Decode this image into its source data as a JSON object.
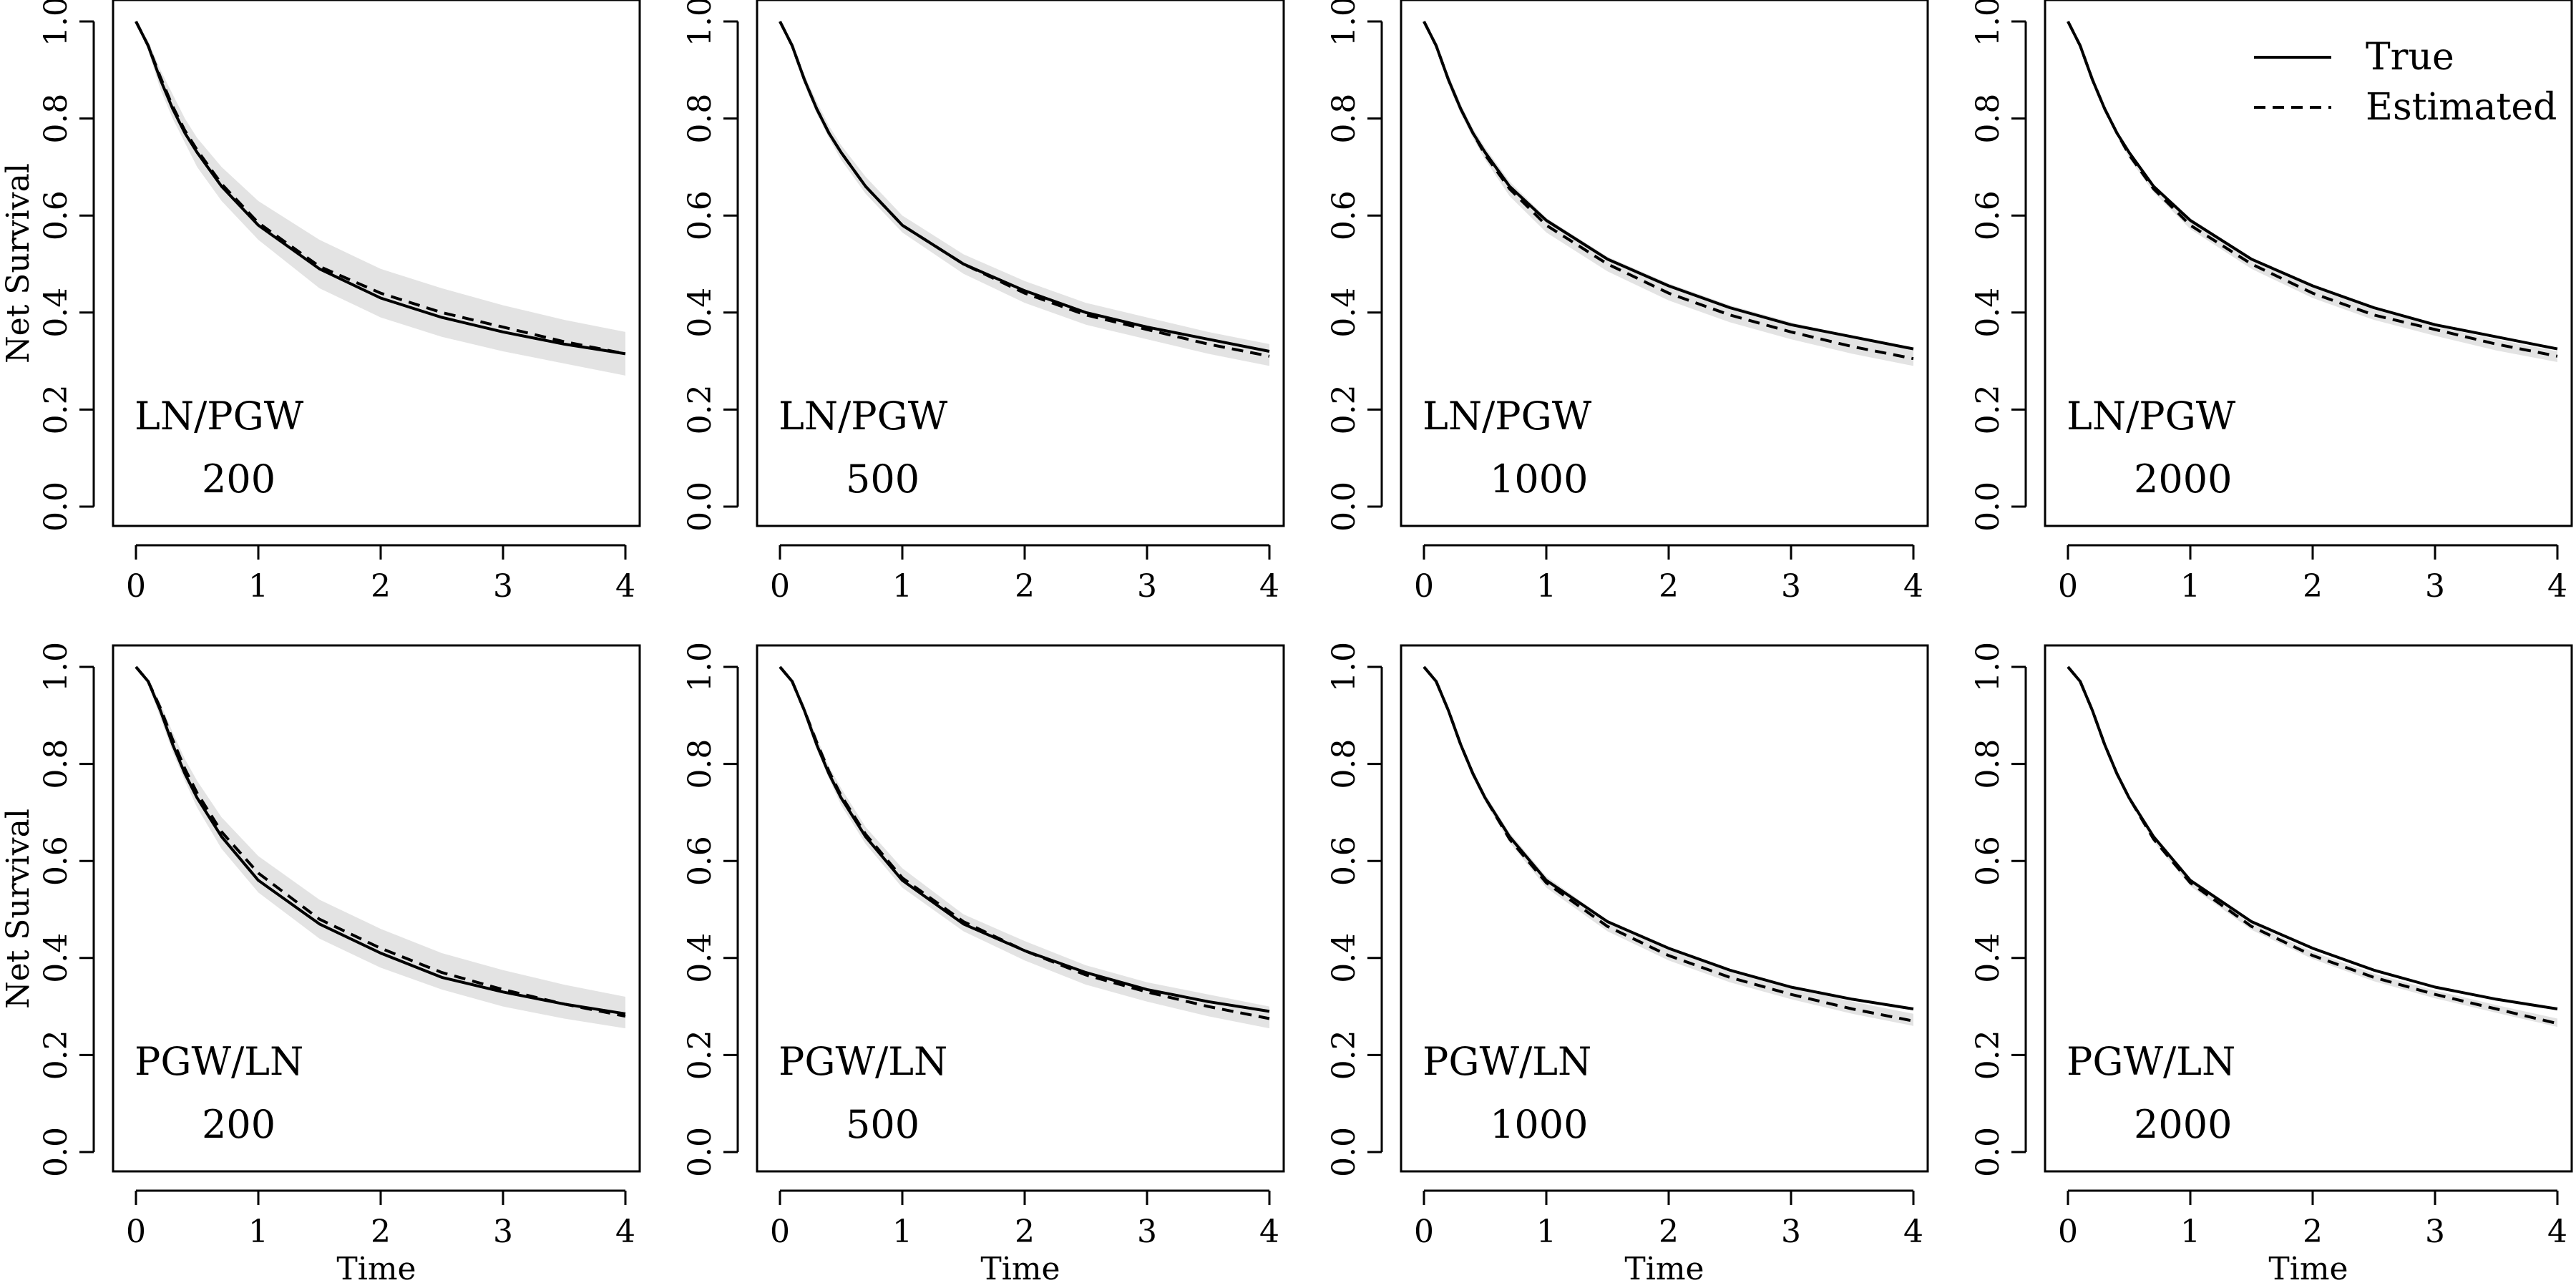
{
  "figure": {
    "ylabel": "Net Survival",
    "xlabel": "Time",
    "colors": {
      "line": "#000000",
      "band": "#e3e3e3",
      "background": "#ffffff"
    },
    "legend": {
      "placement": "top-right",
      "entries": [
        {
          "label": "True",
          "style": "solid"
        },
        {
          "label": "Estimated",
          "style": "dashed"
        }
      ]
    }
  },
  "chart_data": [
    {
      "type": "line",
      "model": "LN/PGW",
      "n": "200",
      "xlim": [
        0,
        4
      ],
      "ylim": [
        0,
        1
      ],
      "xticks": [
        "0",
        "1",
        "2",
        "3",
        "4"
      ],
      "yticks": [
        "0.0",
        "0.2",
        "0.4",
        "0.6",
        "0.8",
        "1.0"
      ],
      "x": [
        0,
        0.1,
        0.2,
        0.3,
        0.4,
        0.5,
        0.7,
        1,
        1.5,
        2,
        2.5,
        3,
        3.5,
        4
      ],
      "series": [
        {
          "style": "solid",
          "values": [
            1.0,
            0.95,
            0.88,
            0.82,
            0.77,
            0.73,
            0.66,
            0.58,
            0.49,
            0.43,
            0.39,
            0.36,
            0.335,
            0.315
          ]
        },
        {
          "style": "dashed",
          "values": [
            1.0,
            0.95,
            0.885,
            0.825,
            0.775,
            0.735,
            0.665,
            0.585,
            0.495,
            0.44,
            0.4,
            0.37,
            0.34,
            0.315
          ]
        }
      ],
      "band": {
        "upper": [
          1.0,
          0.96,
          0.9,
          0.85,
          0.8,
          0.76,
          0.7,
          0.63,
          0.55,
          0.49,
          0.45,
          0.415,
          0.385,
          0.36
        ],
        "lower": [
          1.0,
          0.94,
          0.86,
          0.8,
          0.75,
          0.7,
          0.63,
          0.55,
          0.45,
          0.39,
          0.35,
          0.32,
          0.295,
          0.27
        ]
      }
    },
    {
      "type": "line",
      "model": "LN/PGW",
      "n": "500",
      "xlim": [
        0,
        4
      ],
      "ylim": [
        0,
        1
      ],
      "xticks": [
        "0",
        "1",
        "2",
        "3",
        "4"
      ],
      "yticks": [
        "0.0",
        "0.2",
        "0.4",
        "0.6",
        "0.8",
        "1.0"
      ],
      "x": [
        0,
        0.1,
        0.2,
        0.3,
        0.4,
        0.5,
        0.7,
        1,
        1.5,
        2,
        2.5,
        3,
        3.5,
        4
      ],
      "series": [
        {
          "style": "solid",
          "values": [
            1.0,
            0.95,
            0.88,
            0.82,
            0.77,
            0.73,
            0.66,
            0.58,
            0.5,
            0.445,
            0.4,
            0.37,
            0.345,
            0.32
          ]
        },
        {
          "style": "dashed",
          "values": [
            1.0,
            0.95,
            0.88,
            0.82,
            0.77,
            0.73,
            0.66,
            0.58,
            0.5,
            0.44,
            0.395,
            0.365,
            0.335,
            0.31
          ]
        }
      ],
      "band": {
        "upper": [
          1.0,
          0.955,
          0.89,
          0.835,
          0.785,
          0.745,
          0.68,
          0.6,
          0.52,
          0.465,
          0.42,
          0.39,
          0.36,
          0.335
        ],
        "lower": [
          1.0,
          0.945,
          0.87,
          0.81,
          0.76,
          0.715,
          0.645,
          0.565,
          0.48,
          0.42,
          0.375,
          0.345,
          0.315,
          0.29
        ]
      }
    },
    {
      "type": "line",
      "model": "LN/PGW",
      "n": "1000",
      "xlim": [
        0,
        4
      ],
      "ylim": [
        0,
        1
      ],
      "xticks": [
        "0",
        "1",
        "2",
        "3",
        "4"
      ],
      "yticks": [
        "0.0",
        "0.2",
        "0.4",
        "0.6",
        "0.8",
        "1.0"
      ],
      "x": [
        0,
        0.1,
        0.2,
        0.3,
        0.4,
        0.5,
        0.7,
        1,
        1.5,
        2,
        2.5,
        3,
        3.5,
        4
      ],
      "series": [
        {
          "style": "solid",
          "values": [
            1.0,
            0.95,
            0.88,
            0.82,
            0.77,
            0.73,
            0.66,
            0.59,
            0.51,
            0.455,
            0.41,
            0.375,
            0.35,
            0.325
          ]
        },
        {
          "style": "dashed",
          "values": [
            1.0,
            0.95,
            0.88,
            0.82,
            0.77,
            0.725,
            0.655,
            0.58,
            0.5,
            0.44,
            0.395,
            0.36,
            0.33,
            0.305
          ]
        }
      ],
      "band": {
        "upper": [
          1.0,
          0.955,
          0.89,
          0.83,
          0.78,
          0.74,
          0.67,
          0.595,
          0.515,
          0.46,
          0.415,
          0.38,
          0.35,
          0.325
        ],
        "lower": [
          1.0,
          0.945,
          0.87,
          0.81,
          0.76,
          0.715,
          0.64,
          0.565,
          0.485,
          0.425,
          0.38,
          0.345,
          0.315,
          0.29
        ]
      }
    },
    {
      "type": "line",
      "model": "LN/PGW",
      "n": "2000",
      "xlim": [
        0,
        4
      ],
      "ylim": [
        0,
        1
      ],
      "xticks": [
        "0",
        "1",
        "2",
        "3",
        "4"
      ],
      "yticks": [
        "0.0",
        "0.2",
        "0.4",
        "0.6",
        "0.8",
        "1.0"
      ],
      "x": [
        0,
        0.1,
        0.2,
        0.3,
        0.4,
        0.5,
        0.7,
        1,
        1.5,
        2,
        2.5,
        3,
        3.5,
        4
      ],
      "series": [
        {
          "style": "solid",
          "values": [
            1.0,
            0.95,
            0.88,
            0.82,
            0.77,
            0.73,
            0.66,
            0.59,
            0.51,
            0.455,
            0.41,
            0.375,
            0.35,
            0.325
          ]
        },
        {
          "style": "dashed",
          "values": [
            1.0,
            0.95,
            0.88,
            0.82,
            0.77,
            0.725,
            0.655,
            0.58,
            0.5,
            0.44,
            0.395,
            0.365,
            0.335,
            0.31
          ]
        }
      ],
      "band": {
        "upper": [
          1.0,
          0.953,
          0.885,
          0.825,
          0.775,
          0.735,
          0.665,
          0.59,
          0.51,
          0.452,
          0.408,
          0.372,
          0.345,
          0.32
        ],
        "lower": [
          1.0,
          0.947,
          0.875,
          0.815,
          0.765,
          0.718,
          0.648,
          0.572,
          0.49,
          0.43,
          0.385,
          0.352,
          0.322,
          0.298
        ]
      }
    },
    {
      "type": "line",
      "model": "PGW/LN",
      "n": "200",
      "xlim": [
        0,
        4
      ],
      "ylim": [
        0,
        1
      ],
      "xticks": [
        "0",
        "1",
        "2",
        "3",
        "4"
      ],
      "yticks": [
        "0.0",
        "0.2",
        "0.4",
        "0.6",
        "0.8",
        "1.0"
      ],
      "x": [
        0,
        0.1,
        0.2,
        0.3,
        0.4,
        0.5,
        0.7,
        1,
        1.5,
        2,
        2.5,
        3,
        3.5,
        4
      ],
      "series": [
        {
          "style": "solid",
          "values": [
            1.0,
            0.97,
            0.91,
            0.84,
            0.78,
            0.73,
            0.65,
            0.56,
            0.47,
            0.41,
            0.36,
            0.33,
            0.305,
            0.285
          ]
        },
        {
          "style": "dashed",
          "values": [
            1.0,
            0.97,
            0.915,
            0.85,
            0.79,
            0.74,
            0.66,
            0.575,
            0.48,
            0.42,
            0.37,
            0.335,
            0.305,
            0.28
          ]
        }
      ],
      "band": {
        "upper": [
          1.0,
          0.975,
          0.925,
          0.865,
          0.81,
          0.765,
          0.69,
          0.61,
          0.52,
          0.46,
          0.41,
          0.375,
          0.345,
          0.32
        ],
        "lower": [
          1.0,
          0.965,
          0.895,
          0.825,
          0.765,
          0.71,
          0.625,
          0.535,
          0.44,
          0.38,
          0.335,
          0.3,
          0.275,
          0.255
        ]
      }
    },
    {
      "type": "line",
      "model": "PGW/LN",
      "n": "500",
      "xlim": [
        0,
        4
      ],
      "ylim": [
        0,
        1
      ],
      "xticks": [
        "0",
        "1",
        "2",
        "3",
        "4"
      ],
      "yticks": [
        "0.0",
        "0.2",
        "0.4",
        "0.6",
        "0.8",
        "1.0"
      ],
      "x": [
        0,
        0.1,
        0.2,
        0.3,
        0.4,
        0.5,
        0.7,
        1,
        1.5,
        2,
        2.5,
        3,
        3.5,
        4
      ],
      "series": [
        {
          "style": "solid",
          "values": [
            1.0,
            0.97,
            0.91,
            0.84,
            0.78,
            0.73,
            0.65,
            0.56,
            0.47,
            0.415,
            0.37,
            0.335,
            0.31,
            0.29
          ]
        },
        {
          "style": "dashed",
          "values": [
            1.0,
            0.97,
            0.91,
            0.845,
            0.785,
            0.735,
            0.655,
            0.565,
            0.475,
            0.415,
            0.365,
            0.33,
            0.3,
            0.275
          ]
        }
      ],
      "band": {
        "upper": [
          1.0,
          0.973,
          0.92,
          0.855,
          0.795,
          0.75,
          0.67,
          0.585,
          0.49,
          0.435,
          0.385,
          0.35,
          0.325,
          0.3
        ],
        "lower": [
          1.0,
          0.967,
          0.9,
          0.83,
          0.77,
          0.715,
          0.635,
          0.545,
          0.455,
          0.395,
          0.345,
          0.31,
          0.28,
          0.255
        ]
      }
    },
    {
      "type": "line",
      "model": "PGW/LN",
      "n": "1000",
      "xlim": [
        0,
        4
      ],
      "ylim": [
        0,
        1
      ],
      "xticks": [
        "0",
        "1",
        "2",
        "3",
        "4"
      ],
      "yticks": [
        "0.0",
        "0.2",
        "0.4",
        "0.6",
        "0.8",
        "1.0"
      ],
      "x": [
        0,
        0.1,
        0.2,
        0.3,
        0.4,
        0.5,
        0.7,
        1,
        1.5,
        2,
        2.5,
        3,
        3.5,
        4
      ],
      "series": [
        {
          "style": "solid",
          "values": [
            1.0,
            0.97,
            0.91,
            0.84,
            0.78,
            0.73,
            0.65,
            0.56,
            0.475,
            0.42,
            0.375,
            0.34,
            0.315,
            0.295
          ]
        },
        {
          "style": "dashed",
          "values": [
            1.0,
            0.97,
            0.91,
            0.84,
            0.78,
            0.73,
            0.645,
            0.555,
            0.465,
            0.405,
            0.36,
            0.325,
            0.295,
            0.27
          ]
        }
      ],
      "band": {
        "upper": [
          1.0,
          0.972,
          0.915,
          0.848,
          0.788,
          0.738,
          0.658,
          0.568,
          0.478,
          0.42,
          0.375,
          0.34,
          0.31,
          0.285
        ],
        "lower": [
          1.0,
          0.968,
          0.905,
          0.832,
          0.772,
          0.722,
          0.638,
          0.545,
          0.455,
          0.395,
          0.35,
          0.315,
          0.285,
          0.26
        ]
      }
    },
    {
      "type": "line",
      "model": "PGW/LN",
      "n": "2000",
      "xlim": [
        0,
        4
      ],
      "ylim": [
        0,
        1
      ],
      "xticks": [
        "0",
        "1",
        "2",
        "3",
        "4"
      ],
      "yticks": [
        "0.0",
        "0.2",
        "0.4",
        "0.6",
        "0.8",
        "1.0"
      ],
      "x": [
        0,
        0.1,
        0.2,
        0.3,
        0.4,
        0.5,
        0.7,
        1,
        1.5,
        2,
        2.5,
        3,
        3.5,
        4
      ],
      "series": [
        {
          "style": "solid",
          "values": [
            1.0,
            0.97,
            0.91,
            0.84,
            0.78,
            0.73,
            0.65,
            0.56,
            0.475,
            0.42,
            0.375,
            0.34,
            0.315,
            0.295
          ]
        },
        {
          "style": "dashed",
          "values": [
            1.0,
            0.97,
            0.91,
            0.84,
            0.78,
            0.73,
            0.645,
            0.555,
            0.465,
            0.405,
            0.36,
            0.325,
            0.295,
            0.265
          ]
        }
      ],
      "band": {
        "upper": [
          1.0,
          0.971,
          0.913,
          0.845,
          0.785,
          0.735,
          0.652,
          0.562,
          0.472,
          0.413,
          0.368,
          0.333,
          0.303,
          0.275
        ],
        "lower": [
          1.0,
          0.969,
          0.907,
          0.835,
          0.775,
          0.725,
          0.64,
          0.548,
          0.458,
          0.398,
          0.352,
          0.317,
          0.287,
          0.258
        ]
      }
    }
  ]
}
